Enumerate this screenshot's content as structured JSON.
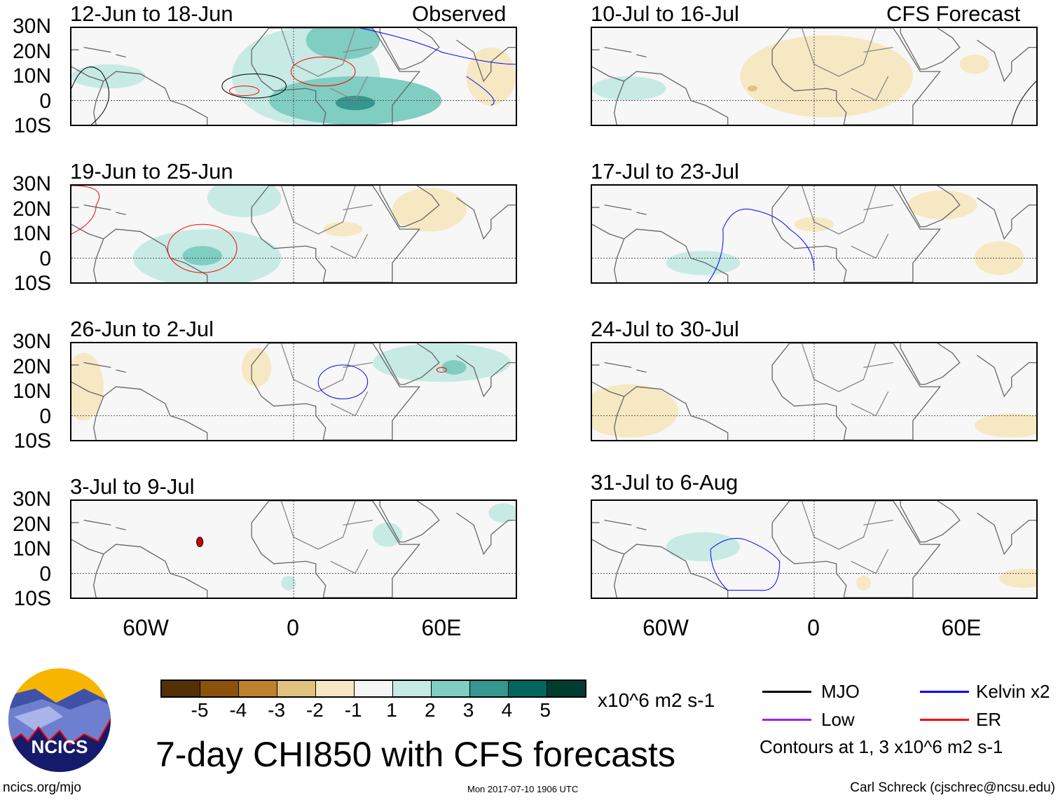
{
  "observed_label": "Observed",
  "forecast_label": "CFS Forecast",
  "panels_left": [
    "12-Jun to 18-Jun",
    "19-Jun to 25-Jun",
    "26-Jun to 2-Jul",
    "3-Jul to 9-Jul"
  ],
  "panels_right": [
    "10-Jul to 16-Jul",
    "17-Jul to 23-Jul",
    "24-Jul to 30-Jul",
    "31-Jul to 6-Aug"
  ],
  "lat_ticks": [
    "30N",
    "20N",
    "10N",
    "0",
    "10S"
  ],
  "lon_ticks": [
    "60W",
    "0",
    "60E"
  ],
  "colorbar": {
    "colors": [
      "#543005",
      "#8c510a",
      "#bf812d",
      "#dfc27d",
      "#f6e8c3",
      "#f5f5f5",
      "#c7eae5",
      "#80cdc1",
      "#35978f",
      "#01665e",
      "#003c30"
    ],
    "ticks": [
      "-5",
      "-4",
      "-3",
      "-2",
      "-1",
      "1",
      "2",
      "3",
      "4",
      "5"
    ],
    "units": "x10^6 m2 s-1"
  },
  "legend": {
    "mjo": "MJO",
    "kelvin": "Kelvin x2",
    "low": "Low",
    "er": "ER",
    "mjo_color": "#000000",
    "kelvin_color": "#0000ff",
    "low_color": "#a020f0",
    "er_color": "#ff0000",
    "note": "Contours at 1, 3 x10^6 m2 s-1"
  },
  "title": "7-day CHI850 with CFS forecasts",
  "logo_text": "NCICS",
  "footer": {
    "url": "ncics.org/mjo",
    "timestamp": "Mon 2017-07-10 1906 UTC",
    "author": "Carl Schreck (cjschrec@ncsu.edu)"
  }
}
